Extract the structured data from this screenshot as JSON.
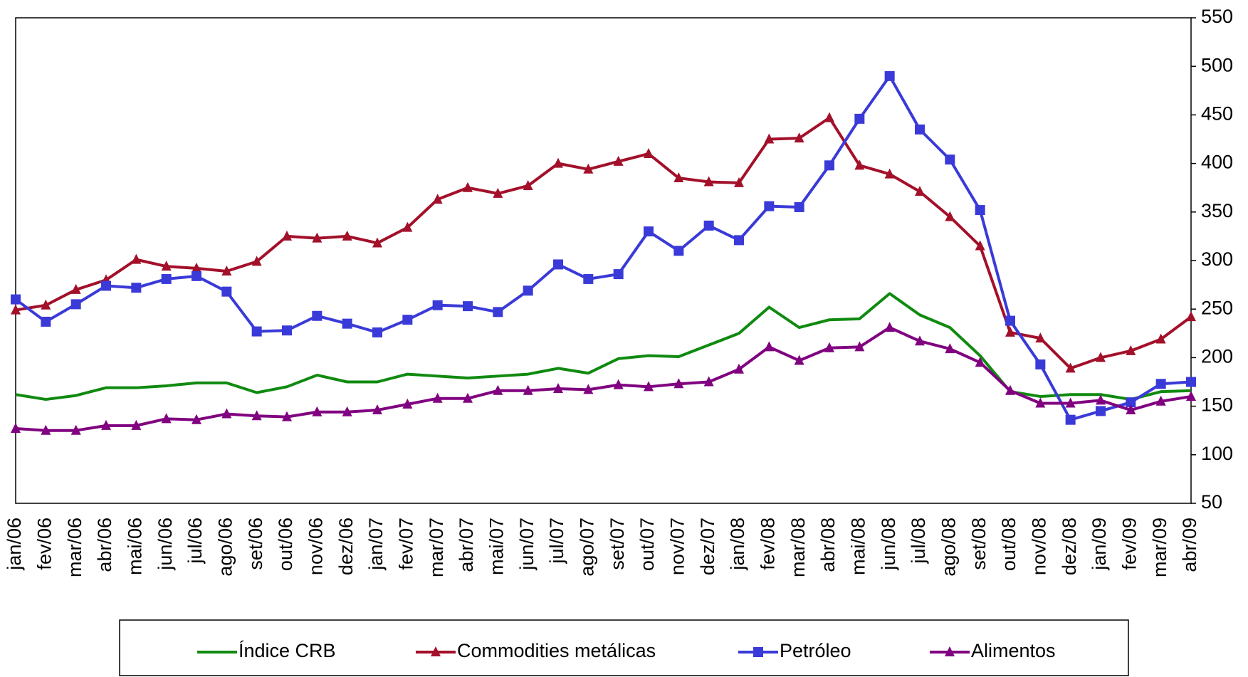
{
  "chart_data": {
    "type": "line",
    "categories": [
      "jan/06",
      "fev/06",
      "mar/06",
      "abr/06",
      "mai/06",
      "jun/06",
      "jul/06",
      "ago/06",
      "set/06",
      "out/06",
      "nov/06",
      "dez/06",
      "jan/07",
      "fev/07",
      "mar/07",
      "abr/07",
      "mai/07",
      "jun/07",
      "jul/07",
      "ago/07",
      "set/07",
      "out/07",
      "nov/07",
      "dez/07",
      "jan/08",
      "fev/08",
      "mar/08",
      "abr/08",
      "mai/08",
      "jun/08",
      "jul/08",
      "ago/08",
      "set/08",
      "out/08",
      "nov/08",
      "dez/08",
      "jan/09",
      "fev/09",
      "mar/09",
      "abr/09"
    ],
    "series": [
      {
        "name": "Índice CRB",
        "color": "#108a10",
        "marker": "none",
        "values": [
          162,
          157,
          161,
          169,
          169,
          171,
          174,
          174,
          164,
          170,
          182,
          175,
          175,
          183,
          181,
          179,
          181,
          183,
          189,
          184,
          199,
          202,
          201,
          213,
          225,
          252,
          231,
          239,
          240,
          266,
          244,
          231,
          202,
          165,
          160,
          162,
          162,
          157,
          165,
          166
        ]
      },
      {
        "name": "Commodities metálicas",
        "color": "#a3102a",
        "marker": "triangle",
        "values": [
          249,
          254,
          270,
          280,
          301,
          294,
          292,
          289,
          299,
          325,
          323,
          325,
          318,
          334,
          363,
          375,
          369,
          377,
          400,
          394,
          402,
          410,
          385,
          381,
          380,
          425,
          426,
          447,
          398,
          389,
          371,
          345,
          315,
          226,
          220,
          189,
          200,
          207,
          219,
          242
        ]
      },
      {
        "name": "Petróleo",
        "color": "#3a3ad8",
        "marker": "square",
        "values": [
          260,
          237,
          255,
          274,
          272,
          281,
          284,
          268,
          227,
          228,
          243,
          235,
          226,
          239,
          254,
          253,
          247,
          269,
          296,
          281,
          286,
          330,
          310,
          336,
          321,
          356,
          355,
          398,
          446,
          490,
          435,
          404,
          352,
          238,
          193,
          136,
          145,
          154,
          173,
          175
        ]
      },
      {
        "name": "Alimentos",
        "color": "#800080",
        "marker": "triangle",
        "values": [
          127,
          125,
          125,
          130,
          130,
          137,
          136,
          142,
          140,
          139,
          144,
          144,
          146,
          152,
          158,
          158,
          166,
          166,
          168,
          167,
          172,
          170,
          173,
          175,
          188,
          211,
          197,
          210,
          211,
          231,
          217,
          209,
          195,
          166,
          153,
          153,
          156,
          146,
          155,
          160
        ]
      }
    ],
    "ylim": [
      50,
      550
    ],
    "yticks": [
      50,
      100,
      150,
      200,
      250,
      300,
      350,
      400,
      450,
      500,
      550
    ],
    "y_axis_side": "right",
    "grid": false,
    "legend": "bottom"
  }
}
